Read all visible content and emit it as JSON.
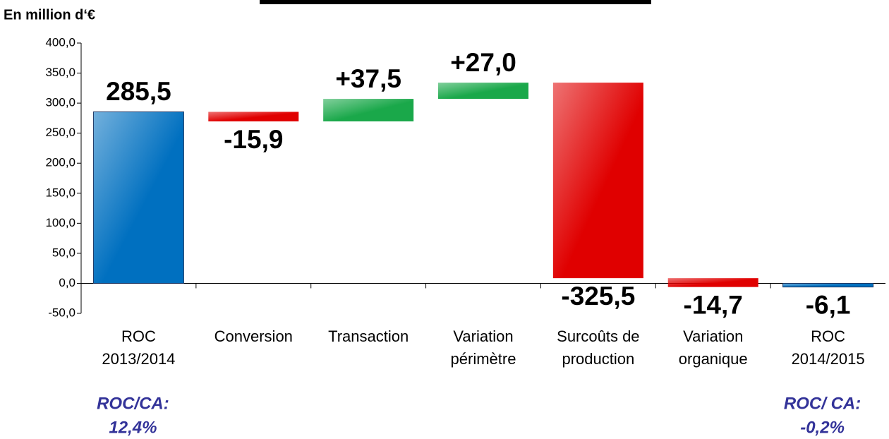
{
  "chart_data": {
    "type": "waterfall",
    "y_label": "En million d‘€",
    "categories": [
      [
        "ROC",
        "2013/2014"
      ],
      [
        "Conversion"
      ],
      [
        "Transaction"
      ],
      [
        "Variation",
        "périmètre"
      ],
      [
        "Surcoûts de",
        "production"
      ],
      [
        "Variation",
        "organique"
      ],
      [
        "ROC",
        "2014/2015"
      ]
    ],
    "values": [
      285.5,
      -15.9,
      37.5,
      27.0,
      -325.5,
      -14.7,
      -6.1
    ],
    "value_labels": [
      "285,5",
      "-15,9",
      "+37,5",
      "+27,0",
      "-325,5",
      "-14,7",
      "-6,1"
    ],
    "totals": [
      true,
      false,
      false,
      false,
      false,
      false,
      true
    ],
    "colors": [
      "#0070c0",
      "#e00000",
      "#1aa84a",
      "#1aa84a",
      "#e00000",
      "#e00000",
      "#0070c0"
    ],
    "ylim": [
      -50,
      400
    ],
    "yticks": [
      {
        "value": -50,
        "label": "-50,0"
      },
      {
        "value": 0,
        "label": "0,0"
      },
      {
        "value": 50,
        "label": "50,0"
      },
      {
        "value": 100,
        "label": "100,0"
      },
      {
        "value": 150,
        "label": "150,0"
      },
      {
        "value": 200,
        "label": "200,0"
      },
      {
        "value": 250,
        "label": "250,0"
      },
      {
        "value": 300,
        "label": "300,0"
      },
      {
        "value": 350,
        "label": "350,0"
      },
      {
        "value": 400,
        "label": "400,0"
      }
    ],
    "annotations": [
      {
        "lines": [
          "ROC/CA:",
          "12,4%"
        ],
        "category": 0
      },
      {
        "lines": [
          "ROC/ CA:",
          "-0,2%"
        ],
        "category": 6
      }
    ]
  }
}
